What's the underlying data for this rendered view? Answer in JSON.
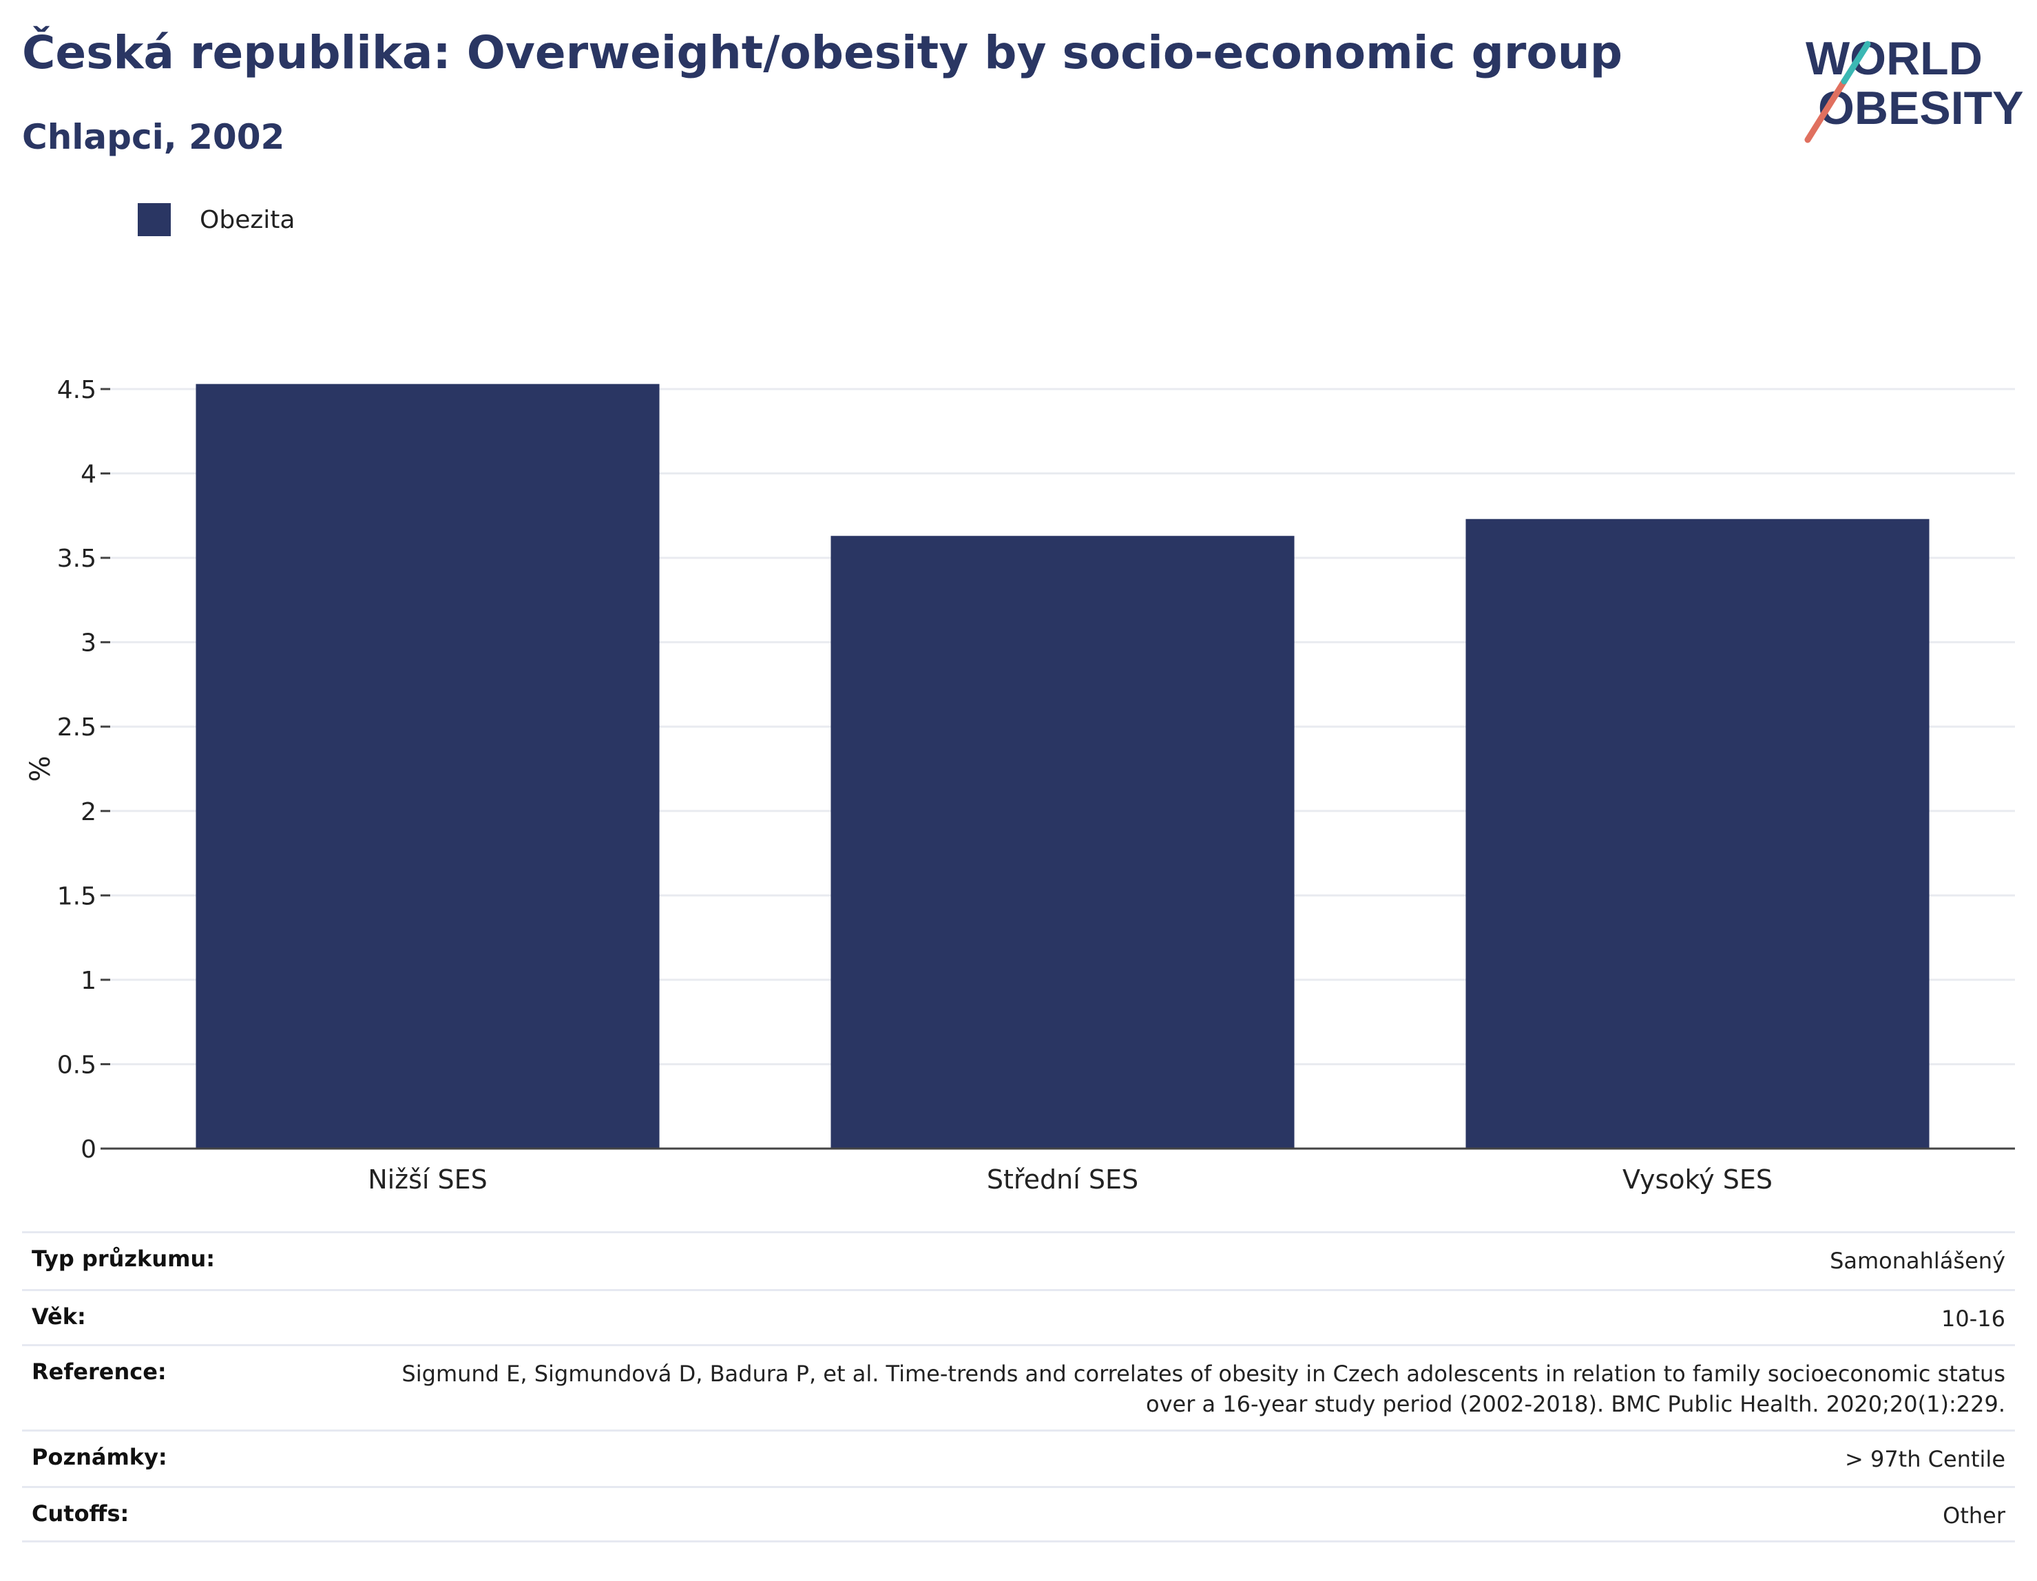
{
  "header": {
    "title": "Česká republika: Overweight/obesity by socio-economic group",
    "subtitle": "Chlapci, 2002"
  },
  "logo": {
    "line1": "WORLD",
    "line2": "OBESITY",
    "colors": [
      "#2a3663",
      "#e0705f",
      "#3bb8b4"
    ]
  },
  "legend": {
    "label": "Obezita",
    "color": "#2a3663"
  },
  "chart_data": {
    "type": "bar",
    "categories": [
      "Nižší SES",
      "Střední SES",
      "Vysoký SES"
    ],
    "series": [
      {
        "name": "Obezita",
        "values": [
          4.53,
          3.63,
          3.73
        ],
        "color": "#2a3663"
      }
    ],
    "ylabel": "%",
    "xlabel": "",
    "ylim": [
      0,
      4.5
    ],
    "yticks": [
      {
        "value": 0,
        "label": "0"
      },
      {
        "value": 0.5,
        "label": "0.5"
      },
      {
        "value": 1,
        "label": "1"
      },
      {
        "value": 1.5,
        "label": "1.5"
      },
      {
        "value": 2,
        "label": "2"
      },
      {
        "value": 2.5,
        "label": "2.5"
      },
      {
        "value": 3,
        "label": "3"
      },
      {
        "value": 3.5,
        "label": "3.5"
      },
      {
        "value": 4,
        "label": "4"
      },
      {
        "value": 4.5,
        "label": "4.5"
      }
    ],
    "grid": true
  },
  "meta": [
    {
      "key": "Typ průzkumu:",
      "value": "Samonahlášený"
    },
    {
      "key": "Věk:",
      "value": "10-16"
    },
    {
      "key": "Reference:",
      "value": "Sigmund E, Sigmundová D, Badura P, et al. Time-trends and correlates of obesity in Czech adolescents in relation to family socioeconomic status over a 16-year study period (2002-2018). BMC Public Health. 2020;20(1):229."
    },
    {
      "key": "Poznámky:",
      "value": "> 97th Centile"
    },
    {
      "key": "Cutoffs:",
      "value": "Other"
    }
  ]
}
